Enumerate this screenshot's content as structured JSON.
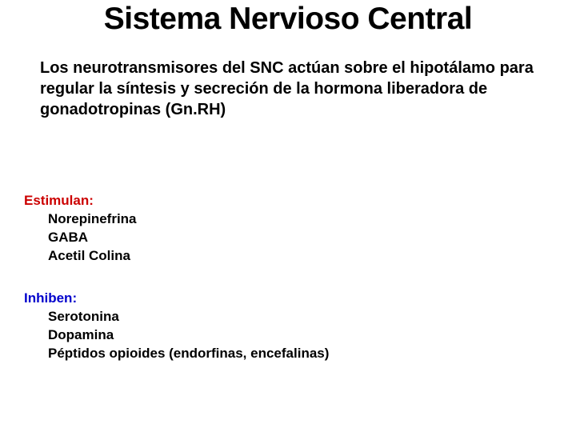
{
  "title": "Sistema Nervioso Central",
  "intro": "Los neurotransmisores del SNC actúan sobre el hipotálamo para regular la síntesis y secreción de la hormona liberadora de gonadotropinas (Gn.RH)",
  "estimulan": {
    "header": "Estimulan:",
    "items": [
      "Norepinefrina",
      "GABA",
      "Acetil Colina"
    ],
    "color": "#cc0000"
  },
  "inhiben": {
    "header": "Inhiben:",
    "items": [
      "Serotonina",
      "Dopamina",
      "Péptidos opioides (endorfinas, encefalinas)"
    ],
    "color": "#0000cc"
  },
  "styles": {
    "background_color": "#ffffff",
    "title_fontsize": 39,
    "intro_fontsize": 20,
    "body_fontsize": 17,
    "title_color": "#000000",
    "text_color": "#000000"
  }
}
